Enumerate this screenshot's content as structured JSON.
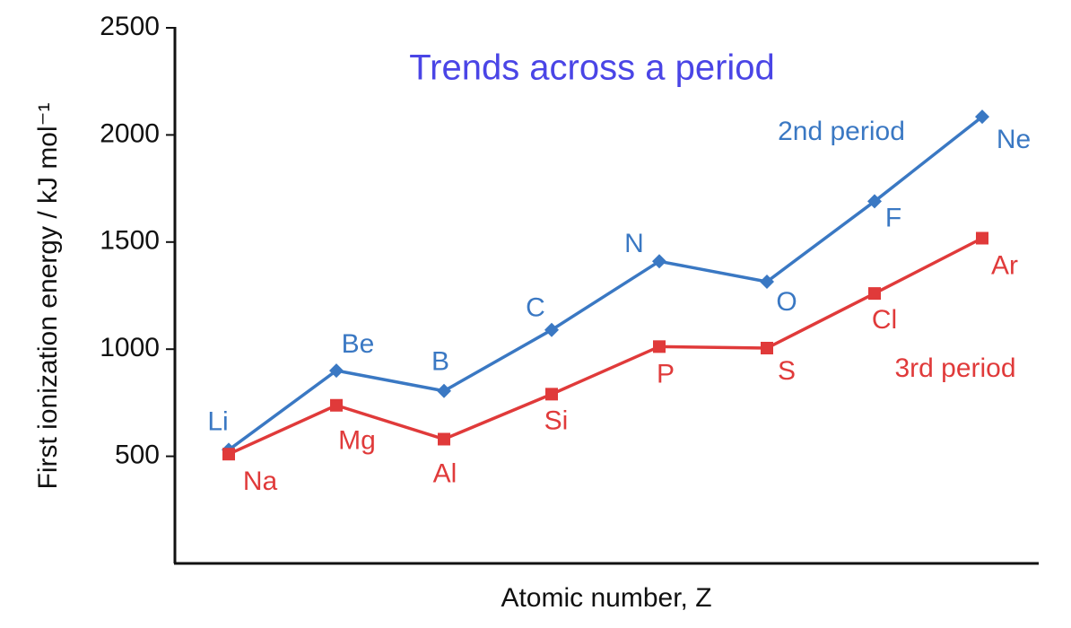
{
  "chart_data": {
    "type": "line",
    "title": "Trends across a period",
    "x_label": "Atomic number, Z",
    "y_label": "First ionization energy / kJ mol⁻¹",
    "ylim": [
      0,
      2500
    ],
    "yticks": [
      500,
      1000,
      1500,
      2000,
      2500
    ],
    "series": [
      {
        "name": "2nd period",
        "color": "#3a78c3",
        "marker": "diamond",
        "point_labels": [
          "Li",
          "Be",
          "B",
          "C",
          "N",
          "O",
          "F",
          "Ne"
        ],
        "values": [
          530,
          900,
          805,
          1090,
          1410,
          1315,
          1690,
          2085
        ]
      },
      {
        "name": "3rd period",
        "color": "#e03a3a",
        "marker": "square",
        "point_labels": [
          "Na",
          "Mg",
          "Al",
          "Si",
          "P",
          "S",
          "Cl",
          "Ar"
        ],
        "values": [
          510,
          738,
          580,
          790,
          1012,
          1005,
          1260,
          1518
        ]
      }
    ]
  }
}
